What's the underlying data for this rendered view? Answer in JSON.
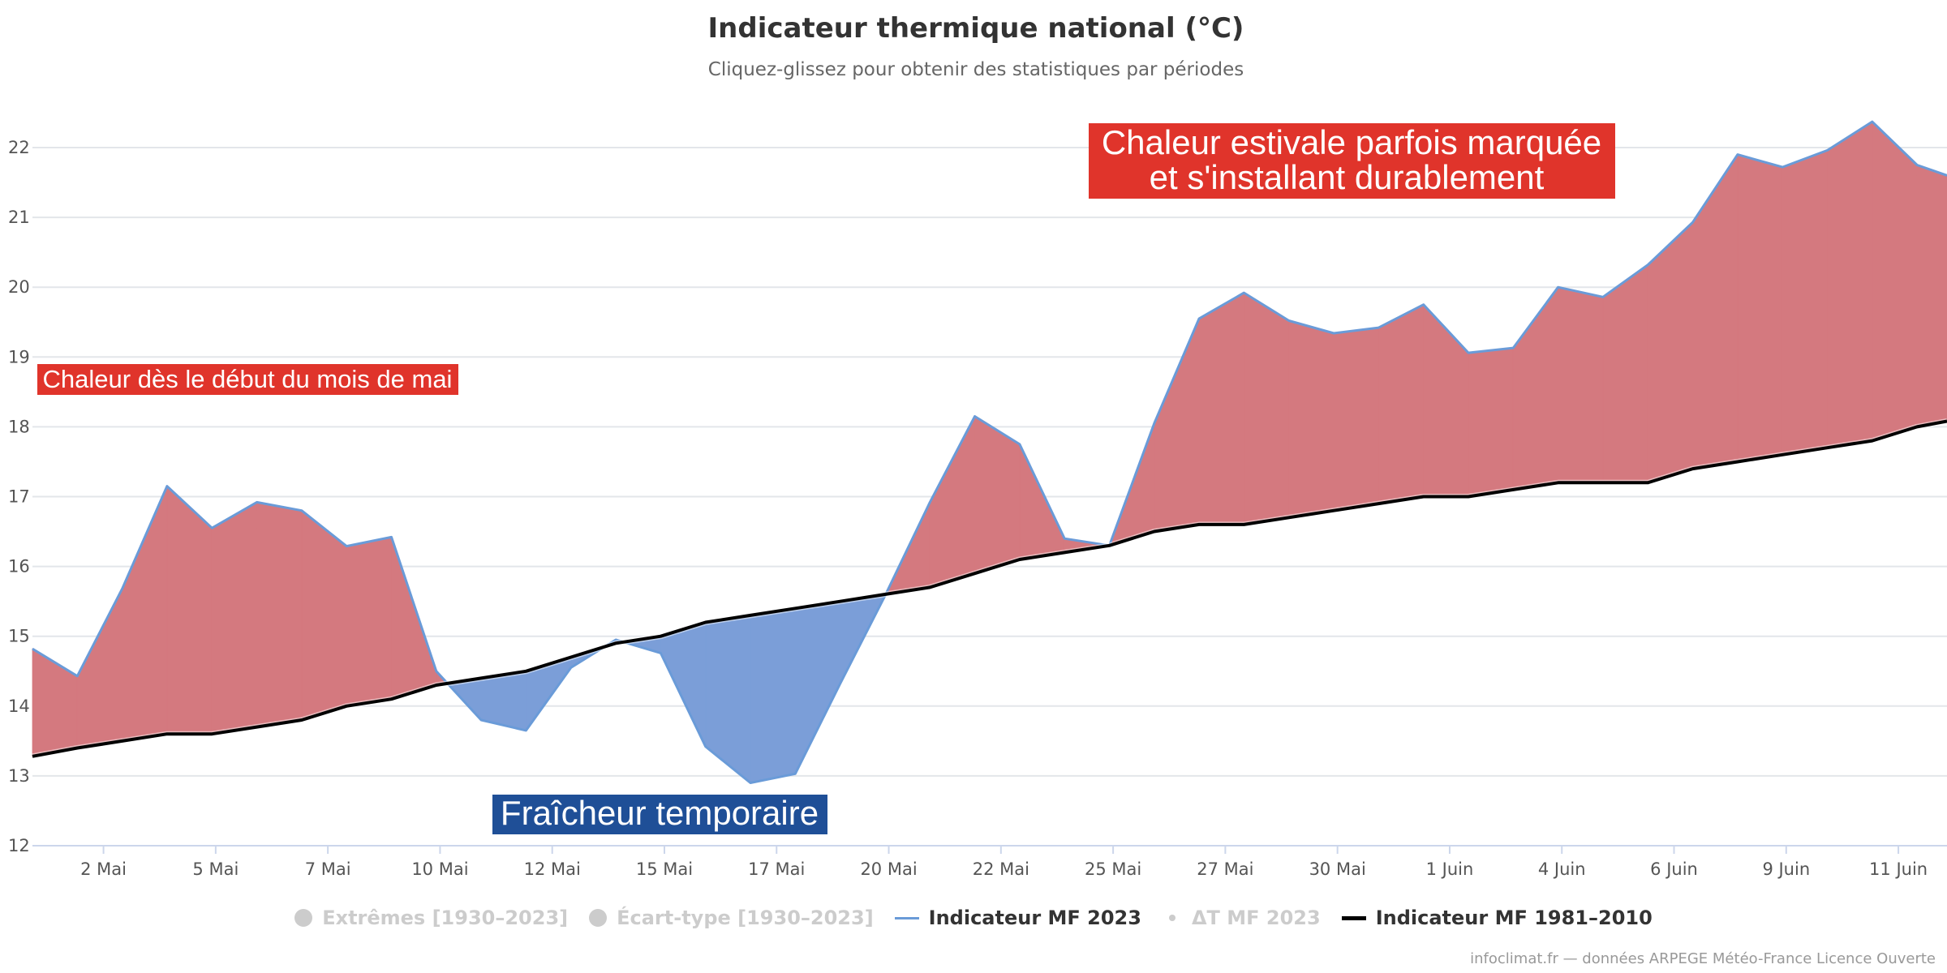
{
  "chart_data": {
    "type": "area",
    "title": "Indicateur thermique national (°C)",
    "subtitle": "Cliquez-glissez pour obtenir des statistiques par périodes",
    "ylim": [
      12,
      22.5
    ],
    "y_ticks": [
      12,
      13,
      14,
      15,
      16,
      17,
      18,
      19,
      20,
      21,
      22
    ],
    "x_ticks": [
      {
        "day": 2,
        "label": "2 Mai"
      },
      {
        "day": 5,
        "label": "5 Mai"
      },
      {
        "day": 8,
        "label": "7 Mai"
      },
      {
        "day": 11,
        "label": "10 Mai"
      },
      {
        "day": 14,
        "label": "12 Mai"
      },
      {
        "day": 17,
        "label": "15 Mai"
      },
      {
        "day": 20,
        "label": "17 Mai"
      },
      {
        "day": 23,
        "label": "20 Mai"
      },
      {
        "day": 26,
        "label": "22 Mai"
      },
      {
        "day": 29,
        "label": "25 Mai"
      },
      {
        "day": 32,
        "label": "27 Mai"
      },
      {
        "day": 35,
        "label": "30 Mai"
      },
      {
        "day": 38,
        "label": "1 Juin"
      },
      {
        "day": 41,
        "label": "4 Juin"
      },
      {
        "day": 44,
        "label": "6 Juin"
      },
      {
        "day": 47,
        "label": "9 Juin"
      },
      {
        "day": 50,
        "label": "11 Juin"
      }
    ],
    "x_range_days": [
      0.1,
      51.3
    ],
    "series": [
      {
        "name": "Indicateur MF 2023",
        "color": "#6a9bd8",
        "values": [
          [
            0.1,
            14.82
          ],
          [
            1.3,
            14.43
          ],
          [
            2.5,
            15.68
          ],
          [
            3.7,
            17.15
          ],
          [
            4.9,
            16.55
          ],
          [
            6.1,
            16.92
          ],
          [
            7.3,
            16.8
          ],
          [
            8.5,
            16.29
          ],
          [
            9.7,
            16.42
          ],
          [
            10.9,
            14.5
          ],
          [
            12.1,
            13.8
          ],
          [
            13.3,
            13.65
          ],
          [
            14.5,
            14.55
          ],
          [
            15.7,
            14.95
          ],
          [
            16.9,
            14.76
          ],
          [
            18.1,
            13.42
          ],
          [
            19.3,
            12.9
          ],
          [
            20.5,
            13.03
          ],
          [
            21.7,
            14.32
          ],
          [
            22.9,
            15.58
          ],
          [
            24.1,
            16.92
          ],
          [
            25.3,
            18.15
          ],
          [
            26.5,
            17.75
          ],
          [
            27.7,
            16.4
          ],
          [
            28.9,
            16.3
          ],
          [
            30.1,
            18.05
          ],
          [
            31.3,
            19.55
          ],
          [
            32.5,
            19.92
          ],
          [
            33.7,
            19.52
          ],
          [
            34.9,
            19.34
          ],
          [
            36.1,
            19.42
          ],
          [
            37.3,
            19.75
          ],
          [
            38.5,
            19.06
          ],
          [
            39.7,
            19.13
          ],
          [
            40.9,
            20.0
          ],
          [
            42.1,
            19.86
          ],
          [
            43.3,
            20.32
          ],
          [
            44.5,
            20.93
          ],
          [
            45.7,
            21.9
          ],
          [
            46.9,
            21.72
          ],
          [
            48.1,
            21.96
          ],
          [
            49.3,
            22.37
          ],
          [
            50.5,
            21.75
          ],
          [
            51.3,
            21.6
          ]
        ]
      },
      {
        "name": "Indicateur MF 1981–2010",
        "color": "#000000",
        "values": [
          [
            0.1,
            13.28
          ],
          [
            1.3,
            13.4
          ],
          [
            2.5,
            13.5
          ],
          [
            3.7,
            13.6
          ],
          [
            4.9,
            13.6
          ],
          [
            6.1,
            13.7
          ],
          [
            7.3,
            13.8
          ],
          [
            8.5,
            14.0
          ],
          [
            9.7,
            14.1
          ],
          [
            10.9,
            14.3
          ],
          [
            12.1,
            14.4
          ],
          [
            13.3,
            14.5
          ],
          [
            14.5,
            14.7
          ],
          [
            15.7,
            14.9
          ],
          [
            16.9,
            15.0
          ],
          [
            18.1,
            15.2
          ],
          [
            19.3,
            15.3
          ],
          [
            20.5,
            15.4
          ],
          [
            21.7,
            15.5
          ],
          [
            22.9,
            15.6
          ],
          [
            24.1,
            15.7
          ],
          [
            25.3,
            15.9
          ],
          [
            26.5,
            16.1
          ],
          [
            27.7,
            16.2
          ],
          [
            28.9,
            16.3
          ],
          [
            30.1,
            16.5
          ],
          [
            31.3,
            16.6
          ],
          [
            32.5,
            16.6
          ],
          [
            33.7,
            16.7
          ],
          [
            34.9,
            16.8
          ],
          [
            36.1,
            16.9
          ],
          [
            37.3,
            17.0
          ],
          [
            38.5,
            17.0
          ],
          [
            39.7,
            17.1
          ],
          [
            40.9,
            17.2
          ],
          [
            42.1,
            17.2
          ],
          [
            43.3,
            17.2
          ],
          [
            44.5,
            17.4
          ],
          [
            45.7,
            17.5
          ],
          [
            46.9,
            17.6
          ],
          [
            48.1,
            17.7
          ],
          [
            49.3,
            17.8
          ],
          [
            50.5,
            18.0
          ],
          [
            51.3,
            18.08
          ]
        ]
      }
    ],
    "fill_colors": {
      "above": "#d4797f",
      "below": "#7b9ed8"
    },
    "annotations": [
      {
        "text": "Chaleur dès le début du mois de mai",
        "bg": "#e0342b"
      },
      {
        "text_lines": [
          "Chaleur estivale parfois marquée",
          "et s'installant durablement"
        ],
        "bg": "#e0342b"
      },
      {
        "text": "Fraîcheur temporaire",
        "bg": "#1f4f97"
      }
    ],
    "legend": [
      {
        "label": "Extrêmes [1930–2023]",
        "symbol": "circle",
        "visible": false
      },
      {
        "label": "Écart-type [1930–2023]",
        "symbol": "circle",
        "visible": false
      },
      {
        "label": "Indicateur MF 2023",
        "symbol": "line-blue",
        "visible": true
      },
      {
        "label": "ΔT MF 2023",
        "symbol": "dot",
        "visible": false
      },
      {
        "label": "Indicateur MF 1981–2010",
        "symbol": "line-black",
        "visible": true
      }
    ],
    "legend_position": "bottom-center",
    "grid": true,
    "credits": "infoclimat.fr — données ARPEGE Météo-France Licence Ouverte"
  }
}
